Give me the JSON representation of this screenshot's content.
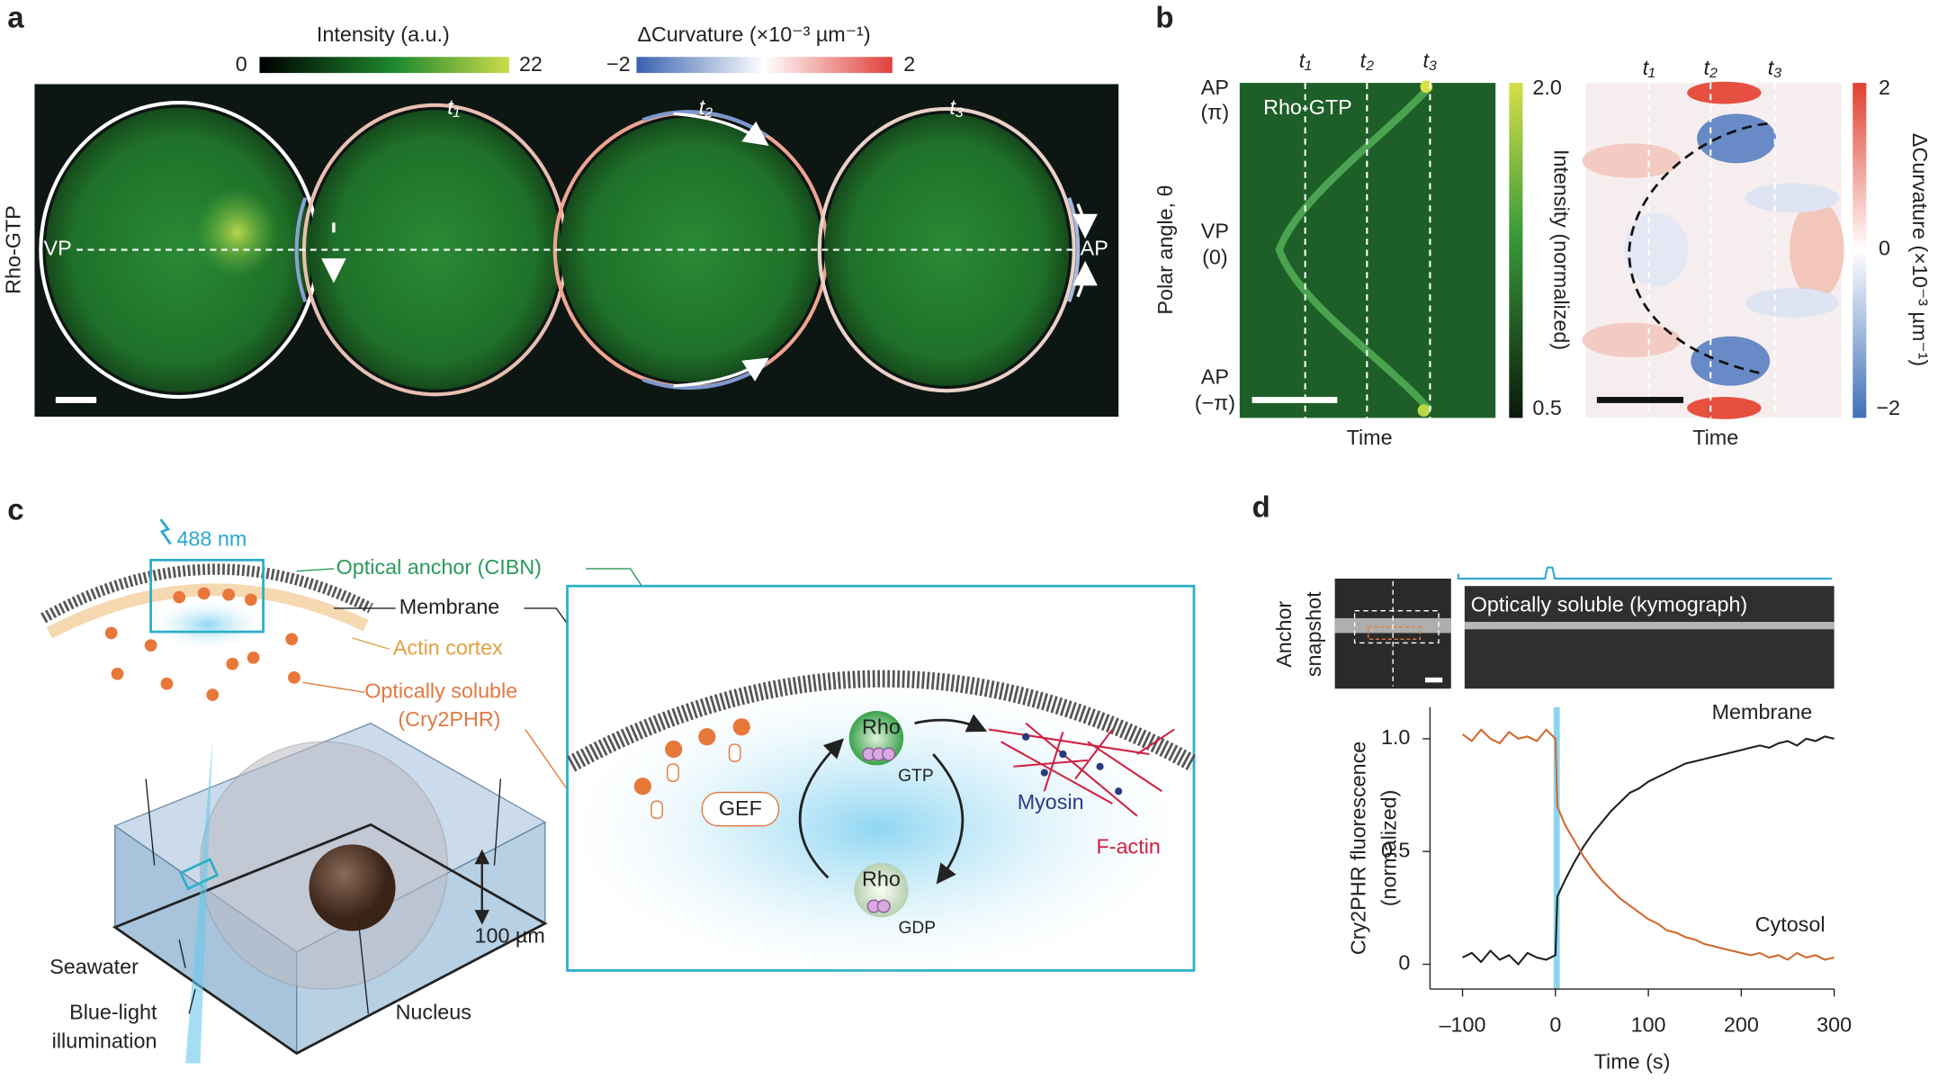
{
  "panel_a": {
    "label": "a",
    "intensity_title": "Intensity (a.u.)",
    "intensity_min": "0",
    "intensity_max": "22",
    "curvature_title": "ΔCurvature (×10⁻³ µm⁻¹)",
    "curvature_min": "−2",
    "curvature_max": "2",
    "row_label": "Rho-GTP",
    "vp": "VP",
    "ap": "AP",
    "times": [
      "t₁",
      "t₂",
      "t₃"
    ]
  },
  "panel_b": {
    "label": "b",
    "times": [
      "t₁",
      "t₂",
      "t₃"
    ],
    "y_label": "Polar angle, θ",
    "angle_labels": [
      {
        "line1": "AP",
        "line2": "(π)"
      },
      {
        "line1": "VP",
        "line2": "(0)"
      },
      {
        "line1": "AP",
        "line2": "(−π)"
      }
    ],
    "inset": "Rho-GTP",
    "x_label": "Time",
    "intensity_bar": {
      "title": "Intensity (normalized)",
      "max": "2.0",
      "min": "0.5"
    },
    "curvature_bar": {
      "title": "ΔCurvature (×10⁻³ µm⁻¹)",
      "max": "2",
      "mid": "0",
      "min": "−2"
    }
  },
  "panel_c": {
    "label": "c",
    "light": "488 nm",
    "anchor": "Optical anchor (CIBN)",
    "membrane": "Membrane",
    "cortex": "Actin cortex",
    "soluble": [
      "Optically soluble",
      "(Cry2PHR)"
    ],
    "seawater": "Seawater",
    "illumination": [
      "Blue-light",
      "illumination"
    ],
    "nucleus": "Nucleus",
    "depth": "100 µm",
    "rho_active": [
      "Rho",
      "GTP"
    ],
    "rho_inactive": [
      "Rho",
      "GDP"
    ],
    "gef": "GEF",
    "myosin": "Myosin",
    "actin": "F-actin"
  },
  "panel_d": {
    "label": "d",
    "snapshot_label": [
      "Anchor",
      "snapshot"
    ],
    "kymograph_label": "Optically soluble (kymograph)"
  },
  "chart_data": {
    "type": "line",
    "x_label": "Time (s)",
    "y_label": [
      "Cry2PHR fluorescence",
      "(normalized)"
    ],
    "x": [
      -100,
      -90,
      -80,
      -70,
      -60,
      -50,
      -40,
      -30,
      -20,
      -10,
      0,
      2,
      10,
      20,
      30,
      40,
      50,
      60,
      70,
      80,
      90,
      100,
      110,
      120,
      130,
      140,
      150,
      160,
      170,
      180,
      190,
      200,
      210,
      220,
      230,
      240,
      250,
      260,
      270,
      280,
      290,
      300
    ],
    "series": [
      {
        "name": "Membrane",
        "color": "#1e1e1e",
        "values": [
          0.03,
          0.05,
          0.01,
          0.06,
          0.02,
          0.04,
          0.0,
          0.05,
          0.03,
          0.02,
          0.04,
          0.3,
          0.37,
          0.45,
          0.52,
          0.58,
          0.63,
          0.68,
          0.72,
          0.76,
          0.78,
          0.81,
          0.83,
          0.85,
          0.87,
          0.89,
          0.9,
          0.91,
          0.92,
          0.93,
          0.94,
          0.95,
          0.96,
          0.97,
          0.96,
          0.98,
          0.99,
          0.97,
          1.0,
          0.99,
          1.01,
          1.0
        ]
      },
      {
        "name": "Cytosol",
        "color": "#d2672c",
        "values": [
          1.02,
          0.99,
          1.04,
          1.0,
          0.98,
          1.03,
          1.0,
          1.01,
          0.99,
          1.04,
          1.0,
          0.7,
          0.62,
          0.55,
          0.48,
          0.42,
          0.37,
          0.33,
          0.29,
          0.26,
          0.23,
          0.2,
          0.18,
          0.15,
          0.14,
          0.12,
          0.11,
          0.09,
          0.08,
          0.07,
          0.06,
          0.05,
          0.04,
          0.05,
          0.03,
          0.04,
          0.02,
          0.05,
          0.03,
          0.04,
          0.02,
          0.03
        ]
      }
    ],
    "xlim": [
      -135,
      300
    ],
    "ylim": [
      -0.11,
      1.14
    ],
    "xticks": [
      {
        "value": -100,
        "label": "–100"
      },
      0,
      100,
      200,
      300
    ],
    "yticks": [
      0,
      0.5,
      {
        "value": 1,
        "label": "1.0"
      }
    ]
  }
}
